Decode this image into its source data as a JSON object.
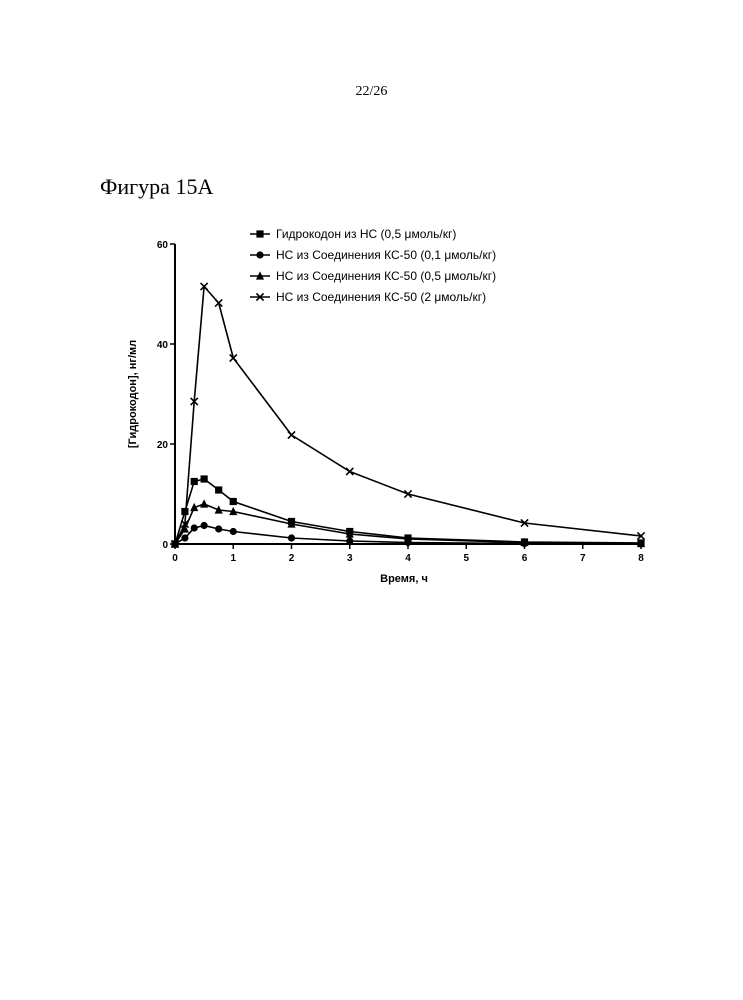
{
  "page": {
    "page_number": "22/26",
    "figure_title": "Фигура 15А"
  },
  "chart_data": {
    "type": "line",
    "title": "",
    "xlabel": "Время, ч",
    "ylabel": "[Гидрокодон], нг/мл",
    "xlim": [
      0,
      8
    ],
    "ylim": [
      0,
      60
    ],
    "xticks": [
      0,
      1,
      2,
      3,
      4,
      5,
      6,
      7,
      8
    ],
    "yticks": [
      0,
      20,
      40,
      60
    ],
    "grid": false,
    "legend_position": "top",
    "series": [
      {
        "name": "Гидрокодон из НС (0,5 μмоль/кг)",
        "marker": "square",
        "x": [
          0,
          0.17,
          0.33,
          0.5,
          0.75,
          1,
          2,
          3,
          4,
          6,
          8
        ],
        "y": [
          0,
          6.5,
          12.5,
          13,
          10.8,
          8.5,
          4.5,
          2.5,
          1.2,
          0.4,
          0.2
        ]
      },
      {
        "name": "НС из Соединения КС-50 (0,1 μмоль/кг)",
        "marker": "circle",
        "x": [
          0,
          0.17,
          0.33,
          0.5,
          0.75,
          1,
          2,
          3,
          4,
          6,
          8
        ],
        "y": [
          0,
          1.2,
          3.2,
          3.7,
          3,
          2.5,
          1.2,
          0.6,
          0.3,
          0.1,
          0
        ]
      },
      {
        "name": "НС из Соединения КС-50 (0,5 μмоль/кг)",
        "marker": "triangle",
        "x": [
          0,
          0.17,
          0.33,
          0.5,
          0.75,
          1,
          2,
          3,
          4,
          6,
          8
        ],
        "y": [
          0,
          3,
          7.3,
          8,
          6.8,
          6.5,
          4,
          2,
          1,
          0.3,
          0.1
        ]
      },
      {
        "name": "НС из Соединения КС-50 (2 μмоль/кг)",
        "marker": "x",
        "x": [
          0,
          0.17,
          0.33,
          0.5,
          0.75,
          1,
          2,
          3,
          4,
          6,
          8
        ],
        "y": [
          0,
          4,
          28.5,
          51.5,
          48.2,
          37.2,
          21.8,
          14.5,
          10,
          4.2,
          1.6
        ]
      }
    ]
  }
}
